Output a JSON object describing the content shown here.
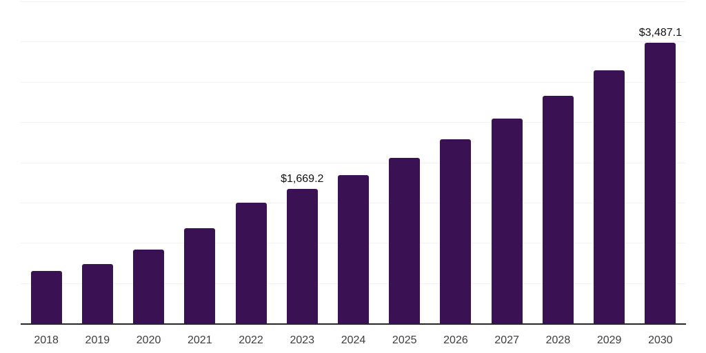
{
  "chart_data": {
    "type": "bar",
    "title": "",
    "xlabel": "",
    "ylabel": "",
    "categories": [
      "2018",
      "2019",
      "2020",
      "2021",
      "2022",
      "2023",
      "2024",
      "2025",
      "2026",
      "2027",
      "2028",
      "2029",
      "2030"
    ],
    "values": [
      652,
      734,
      918,
      1186,
      1500,
      1669.2,
      1842,
      2057,
      2288,
      2544,
      2827,
      3144,
      3487.1
    ],
    "value_labels": [
      "",
      "",
      "",
      "",
      "",
      "$1,669.2",
      "",
      "",
      "",
      "",
      "",
      "",
      "$3,487.1"
    ],
    "ylim": [
      0,
      4000
    ],
    "gridline_step": 500,
    "grid": true,
    "legend": false,
    "colors": {
      "bar": "#3A1254",
      "gridline": "#f2f2f2",
      "axis_line": "#262626",
      "tick_label": "#3d3d3d",
      "value_label": "#111111",
      "background": "#ffffff"
    }
  }
}
